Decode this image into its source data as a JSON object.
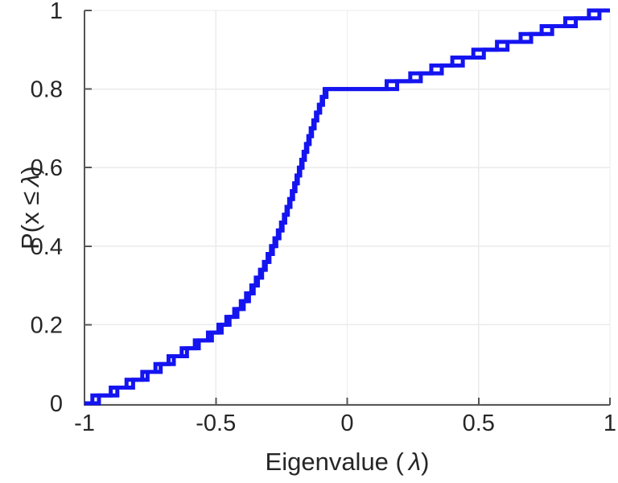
{
  "figure": {
    "xlabel": {
      "prefix": "Eigenvalue (",
      "lambda": "λ",
      "suffix": ")"
    },
    "ylabel": {
      "prefix": "P(x ≤",
      "lambda": "λ",
      "suffix": ")"
    }
  },
  "chart_data": {
    "type": "line",
    "subtype": "ecdf-stairs",
    "title": "",
    "xlabel": "Eigenvalue ( λ)",
    "ylabel": "P(x ≤ λ)",
    "xlim": [
      -1,
      1
    ],
    "ylim": [
      0,
      1
    ],
    "xticks": [
      -1,
      -0.5,
      0,
      0.5,
      1
    ],
    "xtick_labels": [
      "-1",
      "-0.5",
      "0",
      "0.5",
      "1"
    ],
    "yticks": [
      0,
      0.2,
      0.4,
      0.6,
      0.8,
      1
    ],
    "ytick_labels": [
      "0",
      "0.2",
      "0.4",
      "0.6",
      "0.8",
      "1"
    ],
    "grid": true,
    "legend": null,
    "line_color": "#1414f0",
    "line_width": 5,
    "axis_color": "#555555",
    "grid_color": "#ebebeb",
    "tick_label_color": "#262626",
    "series": [
      {
        "name": "ecdf-curve-1",
        "eigenvalues": [
          -0.97,
          -0.9,
          -0.84,
          -0.78,
          -0.73,
          -0.68,
          -0.63,
          -0.58,
          -0.53,
          -0.49,
          -0.46,
          -0.43,
          -0.405,
          -0.385,
          -0.365,
          -0.348,
          -0.332,
          -0.317,
          -0.303,
          -0.29,
          -0.277,
          -0.264,
          -0.252,
          -0.241,
          -0.231,
          -0.221,
          -0.211,
          -0.202,
          -0.193,
          -0.184,
          -0.175,
          -0.166,
          -0.157,
          -0.148,
          -0.139,
          -0.129,
          -0.119,
          -0.108,
          -0.097,
          -0.086,
          0.15,
          0.24,
          0.32,
          0.4,
          0.48,
          0.57,
          0.66,
          0.74,
          0.83,
          0.92
        ]
      },
      {
        "name": "ecdf-curve-2",
        "eigenvalues": [
          -0.945,
          -0.875,
          -0.815,
          -0.76,
          -0.71,
          -0.66,
          -0.61,
          -0.565,
          -0.515,
          -0.478,
          -0.448,
          -0.418,
          -0.394,
          -0.374,
          -0.356,
          -0.34,
          -0.324,
          -0.31,
          -0.296,
          -0.283,
          -0.27,
          -0.258,
          -0.246,
          -0.236,
          -0.226,
          -0.216,
          -0.206,
          -0.197,
          -0.188,
          -0.179,
          -0.17,
          -0.161,
          -0.152,
          -0.143,
          -0.134,
          -0.124,
          -0.114,
          -0.103,
          -0.092,
          -0.079,
          0.19,
          0.28,
          0.36,
          0.44,
          0.52,
          0.61,
          0.7,
          0.78,
          0.87,
          0.96
        ]
      }
    ]
  }
}
